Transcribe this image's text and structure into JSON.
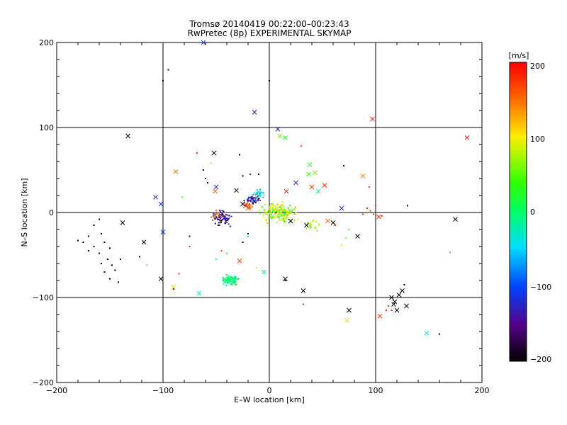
{
  "chart_data": {
    "type": "scatter",
    "title": "Tromsø 20140419 00:22:00–00:23:43",
    "subtitle": "RwPretec (8p) EXPERIMENTAL SKYMAP",
    "xlabel": "E–W location [km]",
    "ylabel": "N–S location [km]",
    "xlim": [
      -200,
      200
    ],
    "ylim": [
      -200,
      200
    ],
    "x_ticks": [
      "−200",
      "−100",
      "0",
      "100",
      "200"
    ],
    "y_ticks": [
      "−200",
      "−100",
      "0",
      "100",
      "200"
    ],
    "grid_lines": [
      -100,
      0,
      100
    ],
    "colorbar": {
      "label": "[m/s]",
      "range": [
        -200,
        200
      ],
      "ticks": [
        "200",
        "100",
        "0",
        "−100",
        "−200"
      ],
      "colormap": "rainbow (black–purple–blue–cyan–green–yellow–red)"
    },
    "cross_points": [
      {
        "x": -133,
        "y": 90,
        "v": -200
      },
      {
        "x": -52,
        "y": 70,
        "v": -190
      },
      {
        "x": -88,
        "y": 48,
        "v": 140
      },
      {
        "x": -14,
        "y": 118,
        "v": -150
      },
      {
        "x": 8,
        "y": 98,
        "v": -130
      },
      {
        "x": 10,
        "y": 90,
        "v": 60
      },
      {
        "x": 15,
        "y": 88,
        "v": 30
      },
      {
        "x": 97,
        "y": 110,
        "v": 180
      },
      {
        "x": 186,
        "y": 88,
        "v": 190
      },
      {
        "x": -107,
        "y": 18,
        "v": -120
      },
      {
        "x": -102,
        "y": 10,
        "v": -110
      },
      {
        "x": -51,
        "y": 25,
        "v": 150
      },
      {
        "x": -50,
        "y": 30,
        "v": -120
      },
      {
        "x": -31,
        "y": 26,
        "v": -200
      },
      {
        "x": -25,
        "y": 10,
        "v": -190
      },
      {
        "x": -20,
        "y": 5,
        "v": 160
      },
      {
        "x": 16,
        "y": 25,
        "v": 180
      },
      {
        "x": 25,
        "y": 35,
        "v": -120
      },
      {
        "x": 38,
        "y": 56,
        "v": 20
      },
      {
        "x": 43,
        "y": 47,
        "v": 60
      },
      {
        "x": 37,
        "y": 45,
        "v": 40
      },
      {
        "x": 40,
        "y": 30,
        "v": 170
      },
      {
        "x": 52,
        "y": 32,
        "v": 180
      },
      {
        "x": 46,
        "y": 25,
        "v": -20
      },
      {
        "x": 88,
        "y": 43,
        "v": 140
      },
      {
        "x": 68,
        "y": 5,
        "v": -130
      },
      {
        "x": 103,
        "y": -5,
        "v": 180
      },
      {
        "x": -138,
        "y": -12,
        "v": -200
      },
      {
        "x": -118,
        "y": -35,
        "v": -200
      },
      {
        "x": -100,
        "y": -23,
        "v": -110
      },
      {
        "x": -102,
        "y": -78,
        "v": -200
      },
      {
        "x": -28,
        "y": -57,
        "v": 170
      },
      {
        "x": -5,
        "y": -70,
        "v": -20
      },
      {
        "x": 15,
        "y": -78,
        "v": -200
      },
      {
        "x": 32,
        "y": -92,
        "v": -200
      },
      {
        "x": 75,
        "y": -115,
        "v": -200
      },
      {
        "x": 73,
        "y": -127,
        "v": 110
      },
      {
        "x": 104,
        "y": -122,
        "v": 180
      },
      {
        "x": 83,
        "y": -28,
        "v": -200
      },
      {
        "x": 60,
        "y": -12,
        "v": -200
      },
      {
        "x": 55,
        "y": -10,
        "v": 150
      },
      {
        "x": 175,
        "y": -8,
        "v": -200
      },
      {
        "x": -90,
        "y": -88,
        "v": 110
      },
      {
        "x": -66,
        "y": -95,
        "v": -40
      },
      {
        "x": 148,
        "y": -142,
        "v": -40
      },
      {
        "x": 115,
        "y": -100,
        "v": -200
      },
      {
        "x": 118,
        "y": -105,
        "v": -200
      },
      {
        "x": 122,
        "y": -97,
        "v": -200
      },
      {
        "x": 125,
        "y": -92,
        "v": -200
      },
      {
        "x": 117,
        "y": -108,
        "v": -200
      },
      {
        "x": 120,
        "y": -115,
        "v": -200
      },
      {
        "x": 129,
        "y": -110,
        "v": -200
      },
      {
        "x": -62,
        "y": 200,
        "v": -110
      },
      {
        "x": 35,
        "y": -15,
        "v": -200
      },
      {
        "x": 20,
        "y": -10,
        "v": -200
      }
    ],
    "dot_points": [
      {
        "x": -95,
        "y": 168,
        "v": -200
      },
      {
        "x": -100,
        "y": 155,
        "v": -200
      },
      {
        "x": 0,
        "y": 155,
        "v": -200
      },
      {
        "x": -28,
        "y": 68,
        "v": -200
      },
      {
        "x": 70,
        "y": 55,
        "v": -200
      },
      {
        "x": -82,
        "y": 18,
        "v": 40
      },
      {
        "x": -25,
        "y": 43,
        "v": -200
      },
      {
        "x": -18,
        "y": 45,
        "v": -150
      },
      {
        "x": -10,
        "y": 45,
        "v": -200
      },
      {
        "x": 30,
        "y": 78,
        "v": 180
      },
      {
        "x": -160,
        "y": -8,
        "v": -200
      },
      {
        "x": -165,
        "y": -15,
        "v": -200
      },
      {
        "x": -158,
        "y": -25,
        "v": -200
      },
      {
        "x": -170,
        "y": -28,
        "v": -200
      },
      {
        "x": -175,
        "y": -35,
        "v": -200
      },
      {
        "x": -165,
        "y": -40,
        "v": -200
      },
      {
        "x": -155,
        "y": -35,
        "v": -200
      },
      {
        "x": -150,
        "y": -42,
        "v": -200
      },
      {
        "x": -160,
        "y": -48,
        "v": -200
      },
      {
        "x": -152,
        "y": -55,
        "v": -200
      },
      {
        "x": -158,
        "y": -60,
        "v": -200
      },
      {
        "x": -148,
        "y": -62,
        "v": -200
      },
      {
        "x": -155,
        "y": -70,
        "v": -200
      },
      {
        "x": -145,
        "y": -68,
        "v": -200
      },
      {
        "x": -150,
        "y": -78,
        "v": -200
      },
      {
        "x": -142,
        "y": -82,
        "v": -200
      },
      {
        "x": -180,
        "y": -33,
        "v": -200
      },
      {
        "x": -140,
        "y": -55,
        "v": -200
      },
      {
        "x": -170,
        "y": -45,
        "v": -200
      },
      {
        "x": -122,
        "y": -52,
        "v": -200
      },
      {
        "x": -115,
        "y": -62,
        "v": 40
      },
      {
        "x": -85,
        "y": -72,
        "v": 180
      },
      {
        "x": -90,
        "y": -90,
        "v": -130
      },
      {
        "x": -20,
        "y": -25,
        "v": -200
      },
      {
        "x": -25,
        "y": -35,
        "v": -200
      },
      {
        "x": -45,
        "y": -45,
        "v": 170
      },
      {
        "x": -40,
        "y": -48,
        "v": 30
      },
      {
        "x": -50,
        "y": -55,
        "v": -40
      },
      {
        "x": -75,
        "y": -28,
        "v": -200
      },
      {
        "x": -75,
        "y": -40,
        "v": 180
      },
      {
        "x": -48,
        "y": -15,
        "v": -200
      },
      {
        "x": -20,
        "y": -28,
        "v": -40
      },
      {
        "x": -12,
        "y": -65,
        "v": 110
      },
      {
        "x": 15,
        "y": -80,
        "v": -200
      },
      {
        "x": 32,
        "y": -108,
        "v": 180
      },
      {
        "x": 160,
        "y": -143,
        "v": -200
      },
      {
        "x": 170,
        "y": -47,
        "v": 40
      },
      {
        "x": 130,
        "y": 8,
        "v": -200
      },
      {
        "x": 100,
        "y": 8,
        "v": 180
      },
      {
        "x": 95,
        "y": 2,
        "v": 180
      },
      {
        "x": 92,
        "y": 5,
        "v": 180
      },
      {
        "x": 98,
        "y": -2,
        "v": 180
      },
      {
        "x": 88,
        "y": -2,
        "v": 180
      },
      {
        "x": 106,
        "y": -4,
        "v": 180
      },
      {
        "x": 94,
        "y": 30,
        "v": 180
      },
      {
        "x": 62,
        "y": -15,
        "v": 180
      },
      {
        "x": 68,
        "y": -38,
        "v": 110
      },
      {
        "x": 75,
        "y": -20,
        "v": 40
      },
      {
        "x": 72,
        "y": -30,
        "v": 60
      },
      {
        "x": 115,
        "y": -115,
        "v": 180
      },
      {
        "x": 110,
        "y": -115,
        "v": 180
      },
      {
        "x": 112,
        "y": -110,
        "v": 180
      },
      {
        "x": 127,
        "y": -85,
        "v": -200
      },
      {
        "x": -62,
        "y": 50,
        "v": -200
      },
      {
        "x": -58,
        "y": 35,
        "v": -200
      },
      {
        "x": -60,
        "y": 40,
        "v": -200
      },
      {
        "x": -55,
        "y": 58,
        "v": 60
      },
      {
        "x": -68,
        "y": 70,
        "v": 180
      }
    ],
    "clusters": [
      {
        "cx": 10,
        "cy": 0,
        "rx": 22,
        "ry": 15,
        "n": 180,
        "vmin": 20,
        "vmax": 120
      },
      {
        "cx": -15,
        "cy": 15,
        "rx": 10,
        "ry": 7,
        "n": 40,
        "vmin": -200,
        "vmax": -90
      },
      {
        "cx": -10,
        "cy": 22,
        "rx": 8,
        "ry": 6,
        "n": 30,
        "vmin": -70,
        "vmax": -20
      },
      {
        "cx": -45,
        "cy": -5,
        "rx": 12,
        "ry": 14,
        "n": 70,
        "vmin": -200,
        "vmax": -100
      },
      {
        "cx": -50,
        "cy": -3,
        "rx": 8,
        "ry": 10,
        "n": 15,
        "vmin": 140,
        "vmax": 180
      },
      {
        "cx": -38,
        "cy": -80,
        "rx": 12,
        "ry": 9,
        "n": 90,
        "vmin": -40,
        "vmax": 40
      },
      {
        "cx": 40,
        "cy": -15,
        "rx": 10,
        "ry": 10,
        "n": 20,
        "vmin": 50,
        "vmax": 110
      },
      {
        "cx": -20,
        "cy": 8,
        "rx": 7,
        "ry": 5,
        "n": 20,
        "vmin": 140,
        "vmax": 190
      }
    ]
  }
}
